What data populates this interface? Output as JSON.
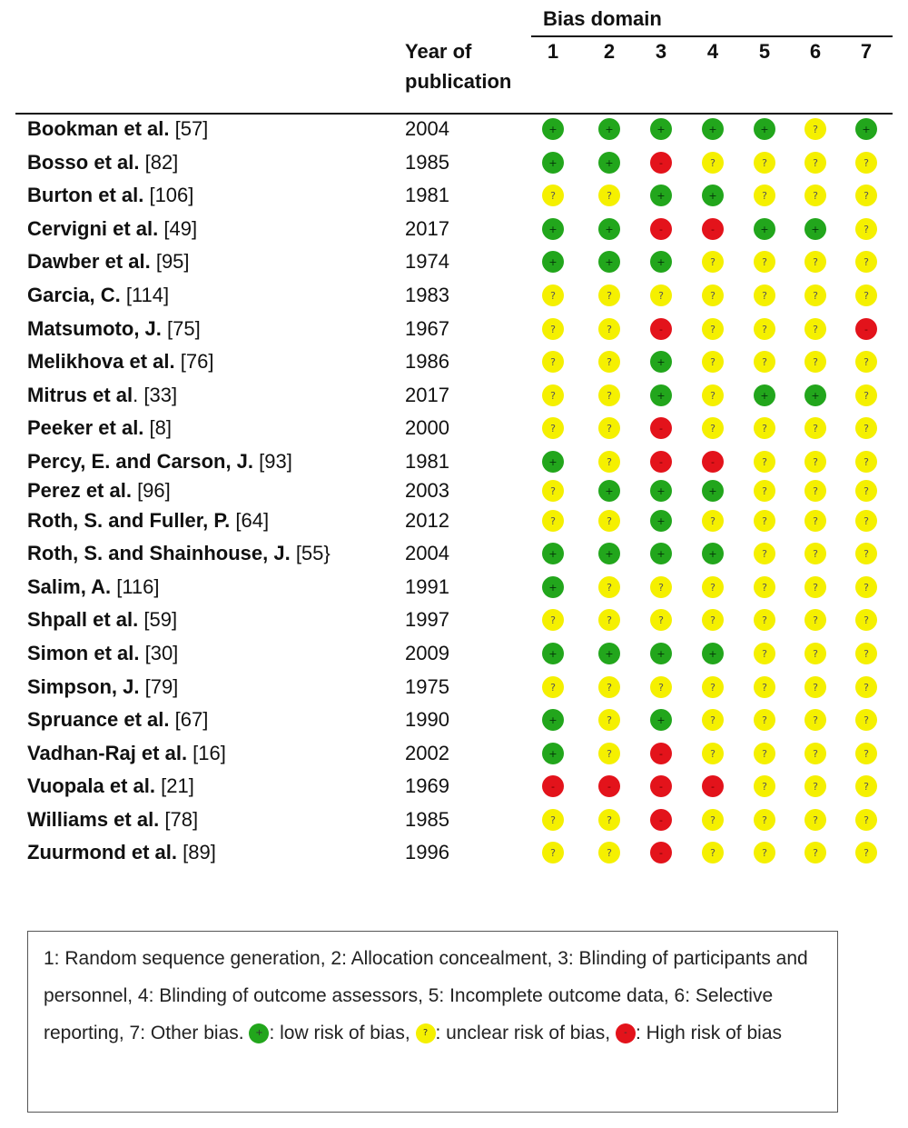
{
  "chart_data": {
    "type": "table",
    "header": {
      "domain_title": "Bias domain",
      "year_label_line1": "Year of",
      "year_label_line2": "publication",
      "domain_columns": [
        "1",
        "2",
        "3",
        "4",
        "5",
        "6",
        "7"
      ]
    },
    "symbols": {
      "low": "+",
      "unclear": "?",
      "high": "-"
    },
    "colors": {
      "low": "#22a61c",
      "unclear": "#f5f000",
      "high": "#e3131b"
    },
    "rows": [
      {
        "author": "Bookman et al.",
        "ref": "[57]",
        "year": "2004",
        "ratings": [
          "low",
          "low",
          "low",
          "low",
          "low",
          "unclear",
          "low"
        ]
      },
      {
        "author": "Bosso et al.",
        "ref": "[82]",
        "year": "1985",
        "ratings": [
          "low",
          "low",
          "high",
          "unclear",
          "unclear",
          "unclear",
          "unclear"
        ]
      },
      {
        "author": "Burton et al.",
        "ref": "[106]",
        "year": "1981",
        "ratings": [
          "unclear",
          "unclear",
          "low",
          "low",
          "unclear",
          "unclear",
          "unclear"
        ]
      },
      {
        "author": "Cervigni et al.",
        "ref": "[49]",
        "year": "2017",
        "ratings": [
          "low",
          "low",
          "high",
          "high",
          "low",
          "low",
          "unclear"
        ]
      },
      {
        "author": "Dawber et al.",
        "ref": "[95]",
        "year": "1974",
        "ratings": [
          "low",
          "low",
          "low",
          "unclear",
          "unclear",
          "unclear",
          "unclear"
        ]
      },
      {
        "author": "Garcia, C.",
        "ref": "[114]",
        "year": "1983",
        "ratings": [
          "unclear",
          "unclear",
          "unclear",
          "unclear",
          "unclear",
          "unclear",
          "unclear"
        ]
      },
      {
        "author": "Matsumoto, J.",
        "ref": "[75]",
        "year": "1967",
        "ratings": [
          "unclear",
          "unclear",
          "high",
          "unclear",
          "unclear",
          "unclear",
          "high"
        ]
      },
      {
        "author": "Melikhova et al.",
        "ref": "[76]",
        "year": "1986",
        "ratings": [
          "unclear",
          "unclear",
          "low",
          "unclear",
          "unclear",
          "unclear",
          "unclear"
        ]
      },
      {
        "author": "Mitrus et al",
        "ref": ". [33]",
        "year": "2017",
        "ratings": [
          "unclear",
          "unclear",
          "low",
          "unclear",
          "low",
          "low",
          "unclear"
        ]
      },
      {
        "author": "Peeker et al.",
        "ref": "[8]",
        "year": "2000",
        "ratings": [
          "unclear",
          "unclear",
          "high",
          "unclear",
          "unclear",
          "unclear",
          "unclear"
        ]
      },
      {
        "author": "Percy, E. and Carson, J.",
        "ref": "[93]",
        "year": "1981",
        "ratings": [
          "low",
          "unclear",
          "high",
          "high",
          "unclear",
          "unclear",
          "unclear"
        ]
      },
      {
        "author": "Perez et al.",
        "ref": "[96]",
        "year": "2003",
        "ratings": [
          "unclear",
          "low",
          "low",
          "low",
          "unclear",
          "unclear",
          "unclear"
        ]
      },
      {
        "author": "Roth, S. and Fuller, P.",
        "ref": "[64]",
        "year": "2012",
        "ratings": [
          "unclear",
          "unclear",
          "low",
          "unclear",
          "unclear",
          "unclear",
          "unclear"
        ]
      },
      {
        "author": "Roth, S. and Shainhouse, J.",
        "ref": "[55}",
        "year": "2004",
        "ratings": [
          "low",
          "low",
          "low",
          "low",
          "unclear",
          "unclear",
          "unclear"
        ]
      },
      {
        "author": "Salim, A.",
        "ref": "[116]",
        "year": "1991",
        "ratings": [
          "low",
          "unclear",
          "unclear",
          "unclear",
          "unclear",
          "unclear",
          "unclear"
        ]
      },
      {
        "author": "Shpall et al.",
        "ref": "[59]",
        "year": "1997",
        "ratings": [
          "unclear",
          "unclear",
          "unclear",
          "unclear",
          "unclear",
          "unclear",
          "unclear"
        ]
      },
      {
        "author": "Simon et al.",
        "ref": "[30]",
        "year": "2009",
        "ratings": [
          "low",
          "low",
          "low",
          "low",
          "unclear",
          "unclear",
          "unclear"
        ]
      },
      {
        "author": "Simpson, J.",
        "ref": "[79]",
        "year": "1975",
        "ratings": [
          "unclear",
          "unclear",
          "unclear",
          "unclear",
          "unclear",
          "unclear",
          "unclear"
        ]
      },
      {
        "author": "Spruance et al.",
        "ref": "[67]",
        "year": "1990",
        "ratings": [
          "low",
          "unclear",
          "low",
          "unclear",
          "unclear",
          "unclear",
          "unclear"
        ]
      },
      {
        "author": "Vadhan-Raj et al.",
        "ref": "[16]",
        "year": "2002",
        "ratings": [
          "low",
          "unclear",
          "high",
          "unclear",
          "unclear",
          "unclear",
          "unclear"
        ]
      },
      {
        "author": "Vuopala et al.",
        "ref": "[21]",
        "year": "1969",
        "ratings": [
          "high",
          "high",
          "high",
          "high",
          "unclear",
          "unclear",
          "unclear"
        ]
      },
      {
        "author": "Williams et al.",
        "ref": "[78]",
        "year": "1985",
        "ratings": [
          "unclear",
          "unclear",
          "high",
          "unclear",
          "unclear",
          "unclear",
          "unclear"
        ]
      },
      {
        "author": "Zuurmond et al.",
        "ref": "[89]",
        "year": "1996",
        "ratings": [
          "unclear",
          "unclear",
          "high",
          "unclear",
          "unclear",
          "unclear",
          "unclear"
        ]
      }
    ],
    "legend": {
      "text_main": "1: Random sequence generation, 2: Allocation concealment, 3: Blinding of participants and personnel, 4: Blinding of outcome assessors, 5: Incomplete outcome data, 6: Selective reporting, 7: Other bias. ",
      "low_label": ": low risk of bias, ",
      "unclear_label": ": unclear risk of bias, ",
      "high_label": ": High risk of bias"
    }
  }
}
